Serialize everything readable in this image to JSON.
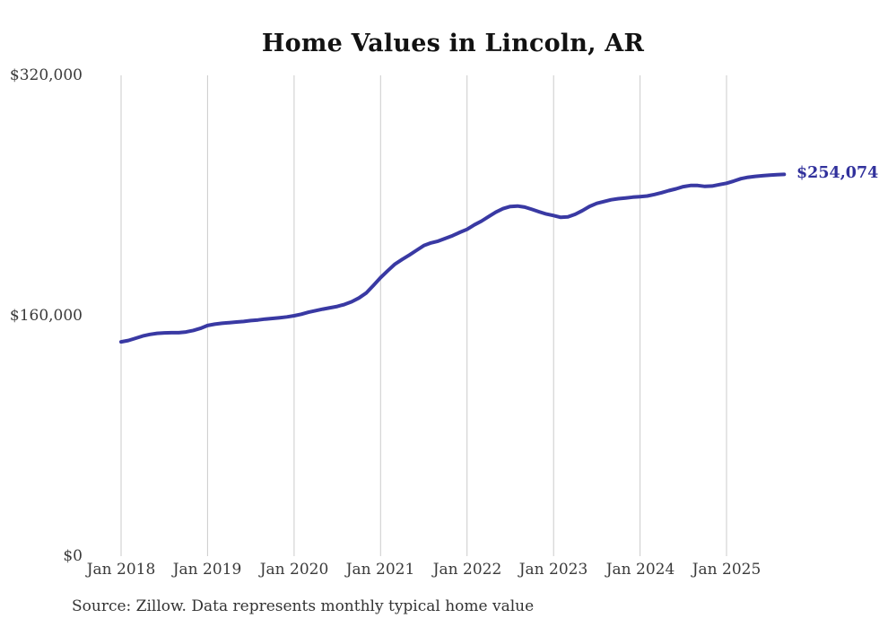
{
  "title": "Home Values in Lincoln, AR",
  "source_note": "Source: Zillow. Data represents monthly typical home value",
  "end_label": "$254,074",
  "colors": {
    "line": "#3939a3",
    "end_label": "#31319c",
    "gridline": "#cbcbcb",
    "axis_text": "#3a3a3a",
    "title_text": "#121212"
  },
  "chart_data": {
    "type": "line",
    "title": "Home Values in Lincoln, AR",
    "xlabel": "",
    "ylabel": "",
    "grid": "vertical-only",
    "legend": "none",
    "ylim": [
      0,
      320000
    ],
    "y_ticks": [
      {
        "label": "$320,000",
        "value": 320000
      },
      {
        "label": "$160,000",
        "value": 160000
      },
      {
        "label": "$0",
        "value": 0
      }
    ],
    "x_tick_labels": [
      "Jan 2018",
      "Jan 2019",
      "Jan 2020",
      "Jan 2021",
      "Jan 2022",
      "Jan 2023",
      "Jan 2024",
      "Jan 2025"
    ],
    "x_start_month": "2018-01",
    "x_end_month": "2025-09",
    "end_value": 254074,
    "end_value_label": "$254,074",
    "series": [
      {
        "name": "Monthly typical home value",
        "values": [
          142600,
          143500,
          145000,
          146500,
          147600,
          148300,
          148600,
          148700,
          148700,
          149200,
          150200,
          151600,
          153500,
          154400,
          155000,
          155400,
          155800,
          156200,
          156800,
          157200,
          157800,
          158200,
          158700,
          159200,
          160000,
          161000,
          162300,
          163400,
          164400,
          165300,
          166200,
          167500,
          169300,
          171800,
          175100,
          180200,
          185400,
          190000,
          194400,
          197500,
          200400,
          203600,
          206700,
          208500,
          209700,
          211500,
          213300,
          215500,
          217500,
          220500,
          223000,
          226000,
          229000,
          231300,
          232700,
          233000,
          232300,
          230800,
          229200,
          227700,
          226700,
          225500,
          225800,
          227500,
          230000,
          232800,
          234800,
          236000,
          237200,
          237900,
          238400,
          238900,
          239300,
          239700,
          240700,
          241900,
          243300,
          244500,
          245900,
          246700,
          246700,
          246100,
          246300,
          247300,
          248200,
          249600,
          251200,
          252200,
          252800,
          253200,
          253600,
          253900,
          254074
        ]
      }
    ]
  }
}
